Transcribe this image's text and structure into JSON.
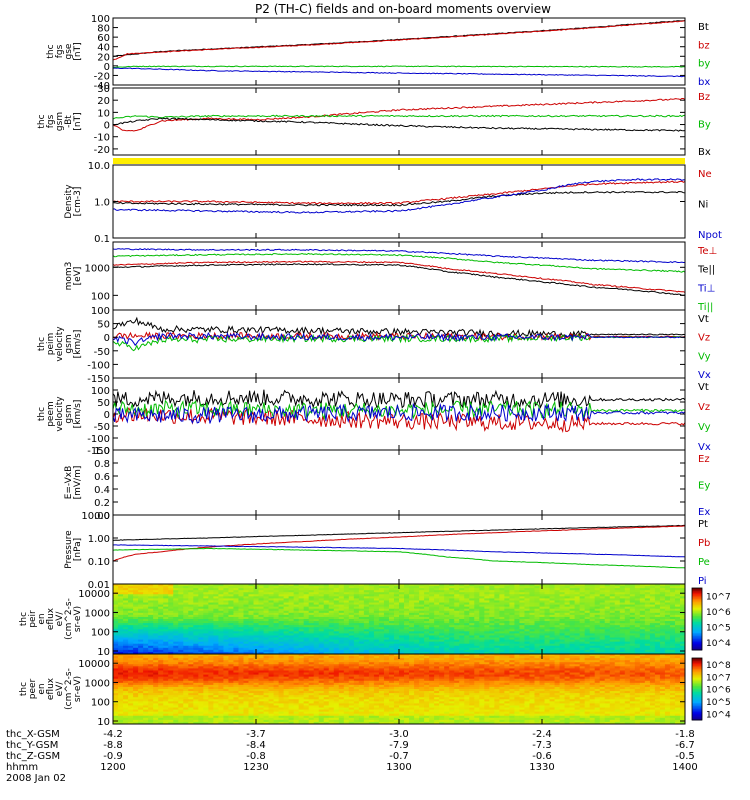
{
  "title": "P2 (TH-C) fields and on-board moments overview",
  "chart_data": {
    "type": "line",
    "title": "P2 (TH-C) fields and on-board moments overview",
    "xlim": [
      "12:00",
      "14:00"
    ],
    "x_ticks": [
      "1200",
      "1230",
      "1300",
      "1330",
      "1400"
    ],
    "x_values_min": [
      0,
      30,
      60,
      90,
      120
    ],
    "orbit_rows": [
      {
        "label": "thc_X-GSM",
        "values": [
          "-4.2",
          "-3.7",
          "-3.0",
          "-2.4",
          "-1.8"
        ]
      },
      {
        "label": "thc_Y-GSM",
        "values": [
          "-8.8",
          "-8.4",
          "-7.9",
          "-7.3",
          "-6.7"
        ]
      },
      {
        "label": "thc_Z-GSM",
        "values": [
          "-0.9",
          "-0.8",
          "-0.7",
          "-0.6",
          "-0.5"
        ]
      },
      {
        "label": "hhmm",
        "values": [
          "1200",
          "1230",
          "1300",
          "1330",
          "1400"
        ]
      }
    ],
    "date_label": "2008 Jan 02",
    "panels": [
      {
        "id": "fgs_gse",
        "ylabel": [
          "thc",
          "fgs",
          "gse",
          "[nT]"
        ],
        "yticks": [
          "100",
          "80",
          "60",
          "40",
          "20",
          "0",
          "-20",
          "-40"
        ],
        "ylim": [
          -40,
          100
        ],
        "legend": [
          {
            "name": "Bt",
            "color": "#000000"
          },
          {
            "name": "bz",
            "color": "#cc0000"
          },
          {
            "name": "by",
            "color": "#00bb00"
          },
          {
            "name": "bx",
            "color": "#0000cc"
          }
        ],
        "series": [
          {
            "name": "Bt",
            "color": "#000000",
            "x": [
              0,
              10,
              20,
              40,
              60,
              80,
              100,
              120
            ],
            "y": [
              20,
              30,
              35,
              44,
              55,
              67,
              80,
              95
            ]
          },
          {
            "name": "bz",
            "color": "#cc0000",
            "x": [
              0,
              3,
              10,
              20,
              40,
              60,
              80,
              100,
              120
            ],
            "y": [
              12,
              25,
              29,
              34,
              43,
              54,
              66,
              79,
              94
            ]
          },
          {
            "name": "by",
            "color": "#00bb00",
            "x": [
              0,
              5,
              20,
              60,
              120
            ],
            "y": [
              -3,
              -1,
              -1,
              -1,
              -2
            ]
          },
          {
            "name": "bx",
            "color": "#0000cc",
            "x": [
              0,
              3,
              20,
              60,
              120
            ],
            "y": [
              -5,
              -5,
              -10,
              -15,
              -22
            ]
          }
        ]
      },
      {
        "id": "fgs_gsm",
        "ylabel": [
          "thc",
          "fgs",
          "gsm",
          "-Bt",
          "[nT]"
        ],
        "yticks": [
          "30",
          "20",
          "10",
          "0",
          "-10",
          "-20"
        ],
        "ylim": [
          -25,
          30
        ],
        "legend": [
          {
            "name": "Bz",
            "color": "#cc0000"
          },
          {
            "name": "By",
            "color": "#00bb00"
          },
          {
            "name": "Bx",
            "color": "#000000"
          }
        ],
        "series": [
          {
            "name": "Bz",
            "color": "#cc0000",
            "x": [
              0,
              2,
              5,
              10,
              20,
              30,
              40,
              60,
              80,
              100,
              120
            ],
            "y": [
              0,
              -5,
              -5,
              3,
              5,
              4,
              6,
              12,
              15,
              18,
              21
            ]
          },
          {
            "name": "By",
            "color": "#00bb00",
            "x": [
              0,
              5,
              10,
              20,
              40,
              60,
              80,
              120
            ],
            "y": [
              5,
              7,
              6,
              7,
              7,
              7,
              7,
              7
            ]
          },
          {
            "name": "Bx",
            "color": "#000000",
            "x": [
              0,
              5,
              10,
              20,
              30,
              40,
              60,
              80,
              100,
              120
            ],
            "y": [
              0,
              3,
              5,
              4,
              3,
              2,
              -1,
              -3,
              -4,
              -5
            ]
          }
        ]
      },
      {
        "id": "density",
        "ylabel": [
          "Density",
          "[cm-3]"
        ],
        "yticks": [
          "10.0",
          "1.0",
          "0.1"
        ],
        "scale": "log",
        "ylim": [
          0.1,
          10
        ],
        "legend": [
          {
            "name": "Ne",
            "color": "#cc0000"
          },
          {
            "name": "Ni",
            "color": "#000000"
          },
          {
            "name": "Npot",
            "color": "#0000cc"
          }
        ],
        "series": [
          {
            "name": "Ne",
            "color": "#cc0000",
            "x": [
              0,
              20,
              40,
              60,
              70,
              80,
              90,
              100,
              110,
              120
            ],
            "y": [
              1.0,
              1.0,
              0.9,
              0.9,
              1.2,
              1.6,
              2.2,
              3.0,
              3.3,
              3.5
            ]
          },
          {
            "name": "Ni",
            "color": "#000000",
            "x": [
              0,
              20,
              40,
              60,
              70,
              80,
              90,
              100
            ],
            "y": [
              0.9,
              0.85,
              0.8,
              0.8,
              1.0,
              1.4,
              1.7,
              1.8
            ]
          },
          {
            "name": "Npot",
            "color": "#0000cc",
            "x": [
              0,
              20,
              40,
              60,
              70,
              80,
              90,
              100,
              110,
              120
            ],
            "y": [
              0.6,
              0.55,
              0.5,
              0.55,
              0.8,
              1.3,
              2.0,
              3.5,
              4.0,
              4.0
            ]
          }
        ]
      },
      {
        "id": "temperature",
        "ylabel": [
          "mom3",
          "[eV]"
        ],
        "yticks": [
          "1000",
          "100"
        ],
        "scale": "log",
        "ylim": [
          30,
          8000
        ],
        "legend": [
          {
            "name": "Te⊥",
            "color": "#cc0000"
          },
          {
            "name": "Te||",
            "color": "#000000"
          },
          {
            "name": "Ti⊥",
            "color": "#0000cc"
          },
          {
            "name": "Ti||",
            "color": "#00bb00"
          }
        ],
        "series": [
          {
            "name": "Te⊥",
            "color": "#cc0000",
            "x": [
              0,
              20,
              40,
              60,
              70,
              80,
              90,
              100,
              110,
              120
            ],
            "y": [
              1200,
              1500,
              1600,
              1500,
              900,
              600,
              400,
              250,
              180,
              130
            ]
          },
          {
            "name": "Te||",
            "color": "#000000",
            "x": [
              0,
              20,
              40,
              60,
              70,
              80,
              90,
              100,
              110,
              120
            ],
            "y": [
              1000,
              1200,
              1300,
              1200,
              700,
              450,
              300,
              200,
              150,
              100
            ]
          },
          {
            "name": "Ti⊥",
            "color": "#0000cc",
            "x": [
              0,
              20,
              40,
              60,
              80,
              100,
              120
            ],
            "y": [
              4500,
              4200,
              4200,
              3800,
              2500,
              1800,
              1500
            ]
          },
          {
            "name": "Ti||",
            "color": "#00bb00",
            "x": [
              0,
              20,
              40,
              60,
              80,
              100,
              120
            ],
            "y": [
              2500,
              2800,
              3000,
              2700,
              1500,
              900,
              700
            ]
          }
        ]
      },
      {
        "id": "peim_velocity",
        "ylabel": [
          "thc",
          "peim",
          "velocity",
          "gsm",
          "[km/s]"
        ],
        "yticks": [
          "100",
          "50",
          "0",
          "-50",
          "-100",
          "-150"
        ],
        "ylim": [
          -150,
          100
        ],
        "legend": [
          {
            "name": "Vt",
            "color": "#000000"
          },
          {
            "name": "Vz",
            "color": "#cc0000"
          },
          {
            "name": "Vy",
            "color": "#00bb00"
          },
          {
            "name": "Vx",
            "color": "#0000cc"
          }
        ],
        "series": [
          {
            "name": "Vt",
            "color": "#000000",
            "x": [
              0,
              5,
              10,
              40,
              60,
              80,
              100,
              120
            ],
            "y": [
              40,
              60,
              30,
              25,
              20,
              15,
              10,
              10
            ]
          },
          {
            "name": "Vz",
            "color": "#cc0000",
            "x": [
              0,
              20,
              60,
              100,
              120
            ],
            "y": [
              5,
              5,
              3,
              2,
              2
            ]
          },
          {
            "name": "Vy",
            "color": "#00bb00",
            "x": [
              0,
              5,
              10,
              40,
              80,
              100,
              120
            ],
            "y": [
              -20,
              -40,
              -10,
              -5,
              -5,
              0,
              0
            ]
          },
          {
            "name": "Vx",
            "color": "#0000cc",
            "x": [
              0,
              5,
              10,
              40,
              80,
              100,
              120
            ],
            "y": [
              -5,
              -20,
              5,
              0,
              0,
              0,
              0
            ]
          }
        ]
      },
      {
        "id": "peem_velocity",
        "ylabel": [
          "thc",
          "peem",
          "velocity",
          "gsm",
          "[km/s]"
        ],
        "yticks": [
          "100",
          "50",
          "0",
          "-50",
          "-100",
          "-150"
        ],
        "ylim": [
          -150,
          150
        ],
        "legend": [
          {
            "name": "Vt",
            "color": "#000000"
          },
          {
            "name": "Vz",
            "color": "#cc0000"
          },
          {
            "name": "Vy",
            "color": "#00bb00"
          },
          {
            "name": "Vx",
            "color": "#0000cc"
          }
        ],
        "series": [
          {
            "name": "Vt",
            "color": "#000000",
            "x": [
              0,
              20,
              40,
              60,
              80,
              100,
              120
            ],
            "y": [
              60,
              70,
              65,
              60,
              60,
              60,
              60
            ]
          },
          {
            "name": "Vz",
            "color": "#cc0000",
            "x": [
              0,
              20,
              40,
              60,
              80,
              100,
              120
            ],
            "y": [
              0,
              -10,
              -20,
              -30,
              -35,
              -40,
              -40
            ]
          },
          {
            "name": "Vy",
            "color": "#00bb00",
            "x": [
              0,
              20,
              40,
              60,
              80,
              100,
              120
            ],
            "y": [
              20,
              20,
              15,
              15,
              20,
              15,
              15
            ]
          },
          {
            "name": "Vx",
            "color": "#0000cc",
            "x": [
              0,
              20,
              40,
              60,
              80,
              100,
              120
            ],
            "y": [
              -10,
              -5,
              0,
              5,
              5,
              5,
              5
            ]
          }
        ]
      },
      {
        "id": "efield",
        "ylabel": [
          "E=-VxB",
          "[mV/m]"
        ],
        "yticks": [
          "1.0",
          "0.8",
          "0.6",
          "0.4",
          "0.2",
          "0.0"
        ],
        "ylim": [
          0,
          1
        ],
        "legend": [
          {
            "name": "Ez",
            "color": "#cc0000"
          },
          {
            "name": "Ey",
            "color": "#00bb00"
          },
          {
            "name": "Ex",
            "color": "#0000cc"
          }
        ],
        "series": []
      },
      {
        "id": "pressure",
        "ylabel": [
          "Pressure",
          "[nPa]"
        ],
        "yticks": [
          "10.00",
          "1.00",
          "0.10",
          "0.01"
        ],
        "scale": "log",
        "ylim": [
          0.01,
          10
        ],
        "legend": [
          {
            "name": "Pt",
            "color": "#000000"
          },
          {
            "name": "Pb",
            "color": "#cc0000"
          },
          {
            "name": "Pe",
            "color": "#00bb00"
          },
          {
            "name": "Pi",
            "color": "#0000cc"
          }
        ],
        "series": [
          {
            "name": "Pt",
            "color": "#000000",
            "x": [
              0,
              20,
              40,
              60,
              80,
              100,
              120
            ],
            "y": [
              0.8,
              1.0,
              1.3,
              1.7,
              2.2,
              2.8,
              3.5
            ]
          },
          {
            "name": "Pb",
            "color": "#cc0000",
            "x": [
              0,
              5,
              10,
              20,
              40,
              60,
              80,
              100,
              120
            ],
            "y": [
              0.1,
              0.2,
              0.25,
              0.4,
              0.7,
              1.1,
              1.7,
              2.4,
              3.3
            ]
          },
          {
            "name": "Pe",
            "color": "#00bb00",
            "x": [
              0,
              20,
              40,
              60,
              70,
              80,
              100,
              120
            ],
            "y": [
              0.3,
              0.35,
              0.3,
              0.25,
              0.15,
              0.1,
              0.07,
              0.05
            ]
          },
          {
            "name": "Pi",
            "color": "#0000cc",
            "x": [
              0,
              20,
              40,
              60,
              80,
              100,
              120
            ],
            "y": [
              0.5,
              0.45,
              0.4,
              0.35,
              0.25,
              0.2,
              0.15
            ]
          }
        ]
      },
      {
        "id": "peir_spectrogram",
        "type": "heatmap",
        "ylabel": [
          "thc",
          "peir",
          "en",
          "eflux",
          "eV/",
          "(cm^2-s-",
          "sr-eV)"
        ],
        "yticks": [
          "10000",
          "1000",
          "100",
          "10"
        ],
        "scale": "log",
        "ylim": [
          7,
          30000
        ],
        "colorbar_ticks": [
          "10^7",
          "10^6",
          "10^5",
          "10^4"
        ],
        "colorbar_range": [
          3000,
          30000000
        ]
      },
      {
        "id": "peer_spectrogram",
        "type": "heatmap",
        "ylabel": [
          "thc",
          "peer",
          "en",
          "eflux",
          "eV/",
          "(cm^2-s-",
          "sr-eV)"
        ],
        "yticks": [
          "10000",
          "1000",
          "100",
          "10"
        ],
        "scale": "log",
        "ylim": [
          7,
          30000
        ],
        "colorbar_ticks": [
          "10^8",
          "10^7",
          "10^6",
          "10^5",
          "10^4"
        ],
        "colorbar_range": [
          3000,
          300000000
        ]
      }
    ]
  }
}
